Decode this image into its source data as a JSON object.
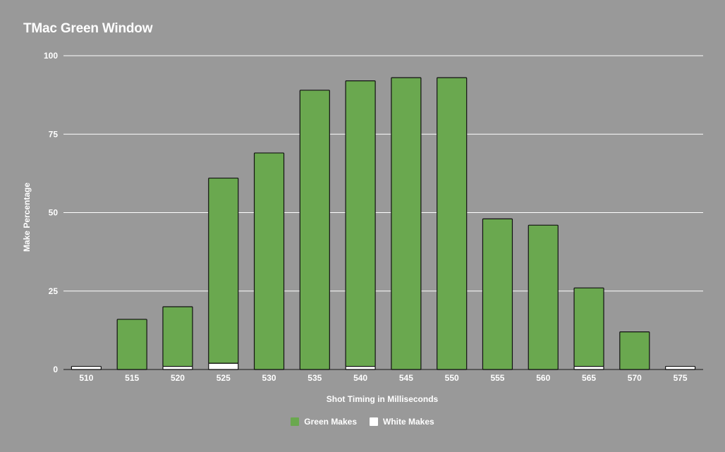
{
  "chart_data": {
    "type": "bar",
    "stacked": true,
    "title": "TMac Green Window",
    "xlabel": "Shot Timing in Milliseconds",
    "ylabel": "Make Percentage",
    "categories": [
      "510",
      "515",
      "520",
      "525",
      "530",
      "535",
      "540",
      "545",
      "550",
      "555",
      "560",
      "565",
      "570",
      "575"
    ],
    "series": [
      {
        "name": "White Makes",
        "color": "#ffffff",
        "values": [
          1,
          0,
          1,
          2,
          0,
          0,
          1,
          0,
          0,
          0,
          0,
          1,
          0,
          1
        ]
      },
      {
        "name": "Green Makes",
        "color": "#6aa84f",
        "values": [
          0,
          16,
          19,
          59,
          69,
          89,
          91,
          93,
          93,
          48,
          46,
          25,
          12,
          0
        ]
      }
    ],
    "ylim": [
      0,
      100
    ],
    "yticks": [
      "0",
      "25",
      "50",
      "75",
      "100"
    ],
    "grid": true,
    "legend_position": "bottom"
  }
}
